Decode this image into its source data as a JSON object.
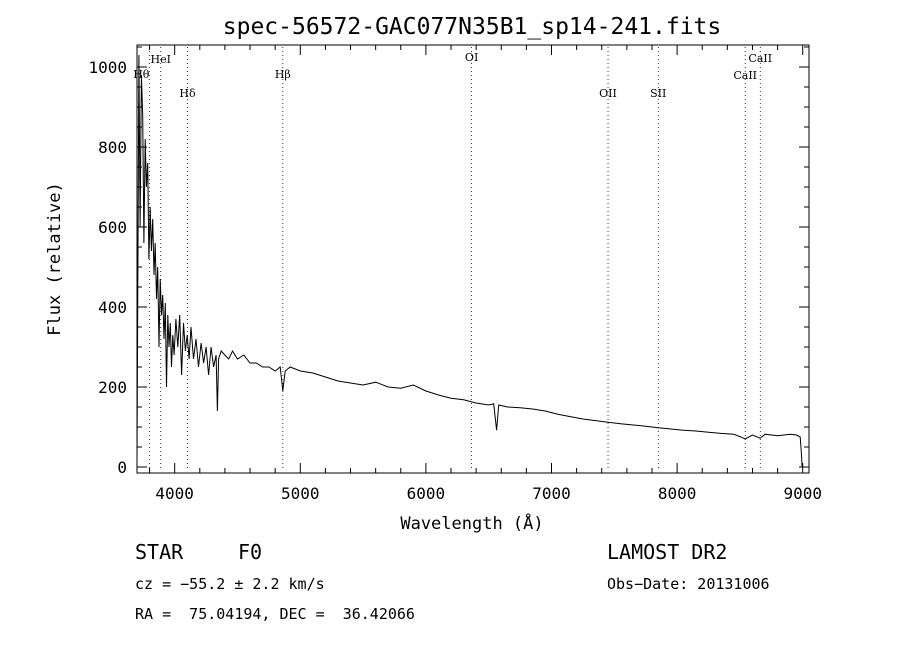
{
  "chart_data": {
    "type": "line",
    "title": "spec-56572-GAC077N35B1_sp14-241.fits",
    "xlabel": "Wavelength (Å)",
    "ylabel": "Flux (relative)",
    "xlim": [
      3700,
      9050
    ],
    "ylim": [
      -15,
      1055
    ],
    "xticks": [
      4000,
      5000,
      6000,
      7000,
      8000,
      9000
    ],
    "yticks": [
      0,
      200,
      400,
      600,
      800,
      1000
    ],
    "grid": false,
    "series": [
      {
        "x": [
          3700,
          3715,
          3725,
          3735,
          3745,
          3755,
          3765,
          3775,
          3785,
          3795,
          3805,
          3815,
          3825,
          3835,
          3845,
          3855,
          3865,
          3875,
          3885,
          3895,
          3905,
          3915,
          3925,
          3935,
          3945,
          3955,
          3965,
          3975,
          3985,
          3995,
          4010,
          4025,
          4040,
          4055,
          4070,
          4085,
          4100,
          4115,
          4130,
          4150,
          4170,
          4190,
          4210,
          4230,
          4250,
          4270,
          4290,
          4310,
          4330,
          4340,
          4350,
          4370,
          4400,
          4430,
          4460,
          4500,
          4550,
          4600,
          4650,
          4700,
          4750,
          4800,
          4840,
          4861,
          4880,
          4920,
          5000,
          5100,
          5200,
          5300,
          5400,
          5500,
          5600,
          5700,
          5800,
          5900,
          6000,
          6100,
          6200,
          6300,
          6400,
          6500,
          6540,
          6563,
          6580,
          6650,
          6750,
          6850,
          6950,
          7050,
          7150,
          7250,
          7350,
          7450,
          7550,
          7650,
          7750,
          7850,
          7950,
          8050,
          8150,
          8250,
          8350,
          8450,
          8500,
          8542,
          8600,
          8662,
          8700,
          8800,
          8900,
          8950,
          8980,
          8990,
          8995
        ],
        "y": [
          20,
          1030,
          600,
          980,
          880,
          560,
          820,
          700,
          760,
          520,
          650,
          540,
          620,
          480,
          560,
          420,
          500,
          300,
          470,
          380,
          430,
          320,
          410,
          200,
          380,
          300,
          360,
          250,
          330,
          280,
          370,
          300,
          380,
          230,
          360,
          290,
          330,
          270,
          350,
          270,
          320,
          250,
          310,
          260,
          300,
          230,
          300,
          250,
          280,
          140,
          270,
          290,
          280,
          270,
          290,
          270,
          280,
          260,
          260,
          250,
          250,
          240,
          250,
          190,
          240,
          250,
          240,
          235,
          225,
          215,
          210,
          205,
          212,
          200,
          197,
          205,
          190,
          180,
          172,
          168,
          160,
          155,
          158,
          92,
          155,
          150,
          148,
          145,
          140,
          132,
          126,
          120,
          116,
          112,
          108,
          105,
          102,
          98,
          95,
          92,
          90,
          87,
          84,
          82,
          76,
          70,
          80,
          72,
          82,
          78,
          82,
          80,
          75,
          30,
          0
        ]
      }
    ],
    "lines": [
      {
        "label": "Hθ",
        "x": 3798
      },
      {
        "label": "HeI",
        "x": 3889
      },
      {
        "label": "Hδ",
        "x": 4102
      },
      {
        "label": "Hβ",
        "x": 4861
      },
      {
        "label": "OI",
        "x": 6364
      },
      {
        "label": "OII",
        "x": 7450
      },
      {
        "label": "SII",
        "x": 7850
      },
      {
        "label": "CaII",
        "x": 8542
      },
      {
        "label": "CaII",
        "x": 8662
      }
    ]
  },
  "info": {
    "class": "STAR",
    "subclass": "F0",
    "survey": "LAMOST DR2",
    "cz": "cz = −55.2 ± 2.2 km/s",
    "obs_date": "Obs−Date: 20131006",
    "radec": "RA =  75.04194, DEC =  36.42066"
  }
}
